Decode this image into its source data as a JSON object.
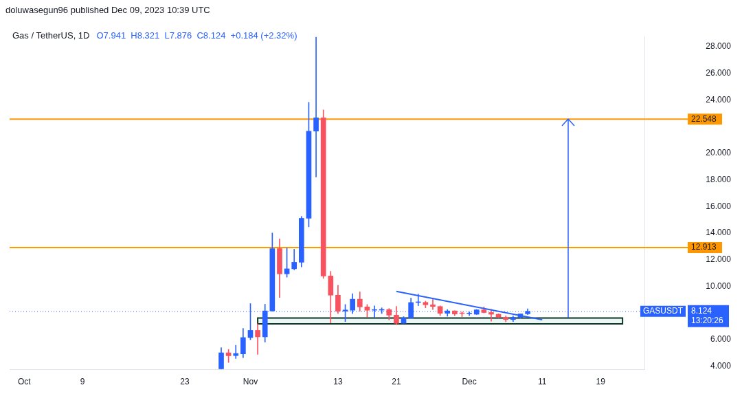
{
  "chart_data": {
    "type": "candlestick",
    "title": "Gas / TetherUS, 1D",
    "subtitle": "O7.941  H8.321  L7.876  C8.124  +0.184 (+2.32%)",
    "x": [
      "2023-10-28",
      "2023-10-29",
      "2023-10-30",
      "2023-10-31",
      "2023-11-01",
      "2023-11-02",
      "2023-11-03",
      "2023-11-04",
      "2023-11-05",
      "2023-11-06",
      "2023-11-07",
      "2023-11-08",
      "2023-11-09",
      "2023-11-10",
      "2023-11-11",
      "2023-11-12",
      "2023-11-13",
      "2023-11-14",
      "2023-11-15",
      "2023-11-16",
      "2023-11-17",
      "2023-11-18",
      "2023-11-19",
      "2023-11-20",
      "2023-11-21",
      "2023-11-22",
      "2023-11-23",
      "2023-11-24",
      "2023-11-25",
      "2023-11-26",
      "2023-11-27",
      "2023-11-28",
      "2023-11-29",
      "2023-11-30",
      "2023-12-01",
      "2023-12-02",
      "2023-12-03",
      "2023-12-04",
      "2023-12-05",
      "2023-12-06",
      "2023-12-07",
      "2023-12-08",
      "2023-12-09"
    ],
    "ohlc": [
      [
        3.81,
        5.4,
        3.8,
        5.01
      ],
      [
        5.01,
        5.27,
        4.29,
        4.79
      ],
      [
        4.8,
        5.58,
        4.58,
        4.96
      ],
      [
        4.93,
        6.85,
        4.65,
        6.16
      ],
      [
        6.16,
        8.71,
        6.0,
        6.7
      ],
      [
        6.7,
        7.2,
        4.89,
        6.21
      ],
      [
        6.21,
        8.66,
        5.82,
        8.16
      ],
      [
        8.16,
        14.01,
        8.14,
        12.84
      ],
      [
        12.84,
        13.56,
        9.17,
        10.94
      ],
      [
        10.94,
        12.88,
        10.69,
        11.32
      ],
      [
        11.32,
        12.79,
        11.24,
        11.81
      ],
      [
        11.81,
        15.25,
        11.46,
        15.11
      ],
      [
        15.11,
        23.82,
        14.47,
        21.65
      ],
      [
        21.65,
        28.7,
        18.21,
        22.65
      ],
      [
        22.65,
        23.25,
        10.6,
        10.78
      ],
      [
        10.78,
        11.13,
        7.26,
        9.34
      ],
      [
        9.34,
        10.09,
        7.96,
        8.14
      ],
      [
        8.14,
        8.64,
        7.36,
        8.23
      ],
      [
        8.21,
        9.45,
        7.96,
        9.04
      ],
      [
        9.04,
        9.59,
        8.14,
        8.46
      ],
      [
        8.46,
        8.64,
        7.68,
        8.21
      ],
      [
        8.21,
        8.54,
        7.68,
        8.24
      ],
      [
        8.22,
        8.39,
        7.96,
        8.25
      ],
      [
        8.26,
        8.34,
        7.49,
        7.84
      ],
      [
        7.84,
        8.5,
        7.13,
        7.23
      ],
      [
        7.23,
        7.73,
        7.23,
        7.63
      ],
      [
        7.63,
        9.12,
        7.63,
        8.79
      ],
      [
        8.79,
        9.42,
        8.55,
        8.8
      ],
      [
        8.8,
        8.89,
        8.39,
        8.62
      ],
      [
        8.62,
        9.12,
        8.26,
        8.49
      ],
      [
        8.49,
        8.54,
        7.81,
        7.98
      ],
      [
        7.98,
        8.26,
        7.76,
        8.16
      ],
      [
        8.16,
        8.18,
        7.81,
        7.93
      ],
      [
        8.0,
        8.09,
        7.73,
        7.96
      ],
      [
        7.95,
        8.08,
        7.81,
        7.97
      ],
      [
        7.91,
        8.27,
        7.89,
        8.24
      ],
      [
        8.24,
        8.46,
        8.01,
        8.04
      ],
      [
        8.04,
        8.28,
        7.38,
        7.91
      ],
      [
        7.91,
        7.94,
        7.64,
        7.68
      ],
      [
        7.68,
        7.79,
        7.34,
        7.51
      ],
      [
        7.51,
        7.79,
        7.36,
        7.68
      ],
      [
        7.68,
        7.94,
        7.62,
        7.94
      ],
      [
        7.941,
        8.321,
        7.876,
        8.124
      ]
    ],
    "colors": [
      "#2962ff",
      "#f7525f",
      "#2962ff",
      "#2962ff",
      "#2962ff",
      "#f7525f",
      "#2962ff",
      "#2962ff",
      "#f7525f",
      "#2962ff",
      "#2962ff",
      "#2962ff",
      "#2962ff",
      "#2962ff",
      "#f7525f",
      "#f7525f",
      "#f7525f",
      "#2962ff",
      "#2962ff",
      "#f7525f",
      "#f7525f",
      "#2962ff",
      "#2962ff",
      "#f7525f",
      "#f7525f",
      "#2962ff",
      "#2962ff",
      "#2962ff",
      "#f7525f",
      "#f7525f",
      "#f7525f",
      "#2962ff",
      "#f7525f",
      "#f7525f",
      "#2962ff",
      "#2962ff",
      "#f7525f",
      "#f7525f",
      "#f7525f",
      "#f7525f",
      "#2962ff",
      "#2962ff",
      "#2962ff"
    ],
    "series": [
      {
        "type": "line",
        "x": [
          "2023-11-21",
          "2023-12-11"
        ],
        "values": [
          9.63,
          7.49
        ],
        "color": "#2962ff"
      }
    ],
    "xlim": [
      "2023-09-29",
      "2023-12-25"
    ],
    "xticks": [
      {
        "value": "2023-10-01",
        "label": "Oct"
      },
      {
        "value": "2023-10-09",
        "label": "9"
      },
      {
        "value": "2023-10-23",
        "label": "23"
      },
      {
        "value": "2023-11-01",
        "label": "Nov"
      },
      {
        "value": "2023-11-13",
        "label": "13"
      },
      {
        "value": "2023-11-21",
        "label": "21"
      },
      {
        "value": "2023-12-01",
        "label": "Dec"
      },
      {
        "value": "2023-12-11",
        "label": "11"
      },
      {
        "value": "2023-12-19",
        "label": "19"
      }
    ],
    "ylim": [
      3.75,
      28.75
    ],
    "yticks": [
      {
        "value": 4,
        "label": "4.000"
      },
      {
        "value": 6,
        "label": "6.000"
      },
      {
        "value": 10,
        "label": "10.000"
      },
      {
        "value": 12,
        "label": "12.000"
      },
      {
        "value": 14,
        "label": "14.000"
      },
      {
        "value": 16,
        "label": "16.000"
      },
      {
        "value": 18,
        "label": "18.000"
      },
      {
        "value": 20,
        "label": "20.000"
      },
      {
        "value": 24,
        "label": "24.000"
      },
      {
        "value": 26,
        "label": "26.000"
      },
      {
        "value": 28,
        "label": "28.000"
      }
    ],
    "ref_lines": [
      {
        "axis": "y",
        "value": 22.548,
        "label": "22.548",
        "color": "#ff9800",
        "line_style": "solid"
      },
      {
        "axis": "y",
        "value": 12.913,
        "label": "12.913",
        "color": "#ff9800",
        "line_style": "solid"
      },
      {
        "axis": "y",
        "value": 8.124,
        "label": "GASUSDT",
        "color": "#2962ff",
        "line_style": "dotted"
      }
    ],
    "bands": [
      {
        "axis": "y",
        "from": 7.19,
        "to": 7.63,
        "color": "#ebf7f4"
      }
    ],
    "annotations": [
      "doluwasegun96 published Dec 09, 2023 10:39 UTC",
      "8.124",
      "13:20:26"
    ],
    "grid": false,
    "legend": false
  }
}
